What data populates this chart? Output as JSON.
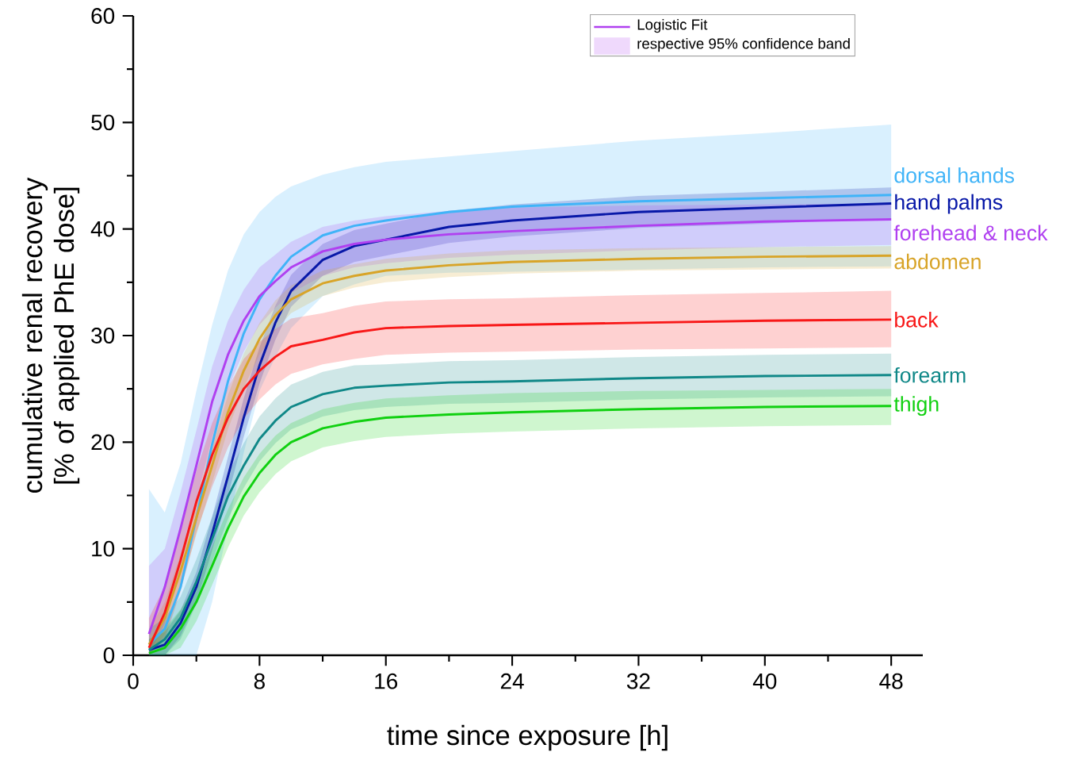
{
  "chart_data": {
    "type": "line",
    "xlabel": "time since exposure [h]",
    "ylabel": "cumulative renal recovery [% of applied PhE dose]",
    "xlim": [
      0,
      50
    ],
    "xticks": [
      0,
      8,
      16,
      24,
      32,
      40,
      48
    ],
    "ylim": [
      0,
      60
    ],
    "yticks": [
      0,
      10,
      20,
      30,
      40,
      50,
      60
    ],
    "annotations": [
      "Logistic Fit",
      "respective 95% confidence band"
    ],
    "x": [
      1,
      2,
      3,
      4,
      5,
      6,
      7,
      8,
      9,
      10,
      12,
      14,
      16,
      20,
      24,
      32,
      40,
      48
    ],
    "series": [
      {
        "name": "dorsal hands",
        "color": "#40b4f8",
        "values": [
          1.0,
          2.5,
          6.4,
          12.9,
          19.8,
          25.7,
          30.2,
          33.4,
          35.6,
          37.4,
          39.4,
          40.3,
          40.8,
          41.6,
          42.1,
          42.6,
          42.9,
          43.2
        ],
        "lower": [
          0,
          0,
          0,
          0,
          5,
          12,
          19,
          24.8,
          28,
          30.7,
          33.7,
          34.8,
          35.6,
          35.9,
          36,
          36.2,
          36.4,
          36.5
        ],
        "upper": [
          15.6,
          13.4,
          18,
          24.8,
          31,
          36.1,
          39.5,
          41.6,
          43,
          44,
          45.1,
          45.8,
          46.3,
          46.8,
          47.3,
          48.3,
          49,
          49.8
        ]
      },
      {
        "name": "hand palms",
        "color": "#0818a8",
        "values": [
          0.5,
          1.0,
          3.0,
          6.4,
          11.4,
          16.8,
          22.3,
          27.2,
          31.2,
          34.2,
          37.1,
          38.4,
          39,
          40.2,
          40.8,
          41.6,
          42.0,
          42.4
        ],
        "lower": [
          0,
          0,
          1.8,
          5,
          9.8,
          15,
          20.5,
          25.5,
          29.6,
          32.7,
          35.6,
          36.9,
          37.5,
          38.7,
          39.3,
          40.1,
          40.5,
          41.0
        ],
        "upper": [
          1.5,
          2.2,
          4.2,
          7.8,
          13,
          18.6,
          24.1,
          28.9,
          32.8,
          35.7,
          38.6,
          39.9,
          40.5,
          41.7,
          42.3,
          43.1,
          43.5,
          43.9
        ]
      },
      {
        "name": "forehead & neck",
        "color": "#b040f0",
        "values": [
          2.0,
          6.4,
          11.9,
          17.8,
          23.8,
          28.2,
          31.4,
          33.7,
          35.1,
          36.4,
          37.9,
          38.6,
          39,
          39.5,
          39.8,
          40.3,
          40.7,
          40.9
        ],
        "lower": [
          0,
          3,
          8.5,
          14.5,
          20.5,
          25,
          28.5,
          31,
          32.6,
          34,
          35.6,
          36.4,
          36.8,
          37.3,
          37.6,
          38,
          38.3,
          38.5
        ],
        "upper": [
          8.4,
          10,
          15.3,
          21.1,
          27.1,
          31.4,
          34.3,
          36.4,
          37.6,
          38.8,
          40.2,
          40.8,
          41.2,
          41.7,
          42,
          42.2,
          42.3,
          42.4
        ]
      },
      {
        "name": "abdomen",
        "color": "#d8a428",
        "values": [
          1.0,
          3.5,
          7.9,
          12.9,
          17.8,
          22.8,
          26.7,
          29.7,
          31.9,
          33.4,
          34.9,
          35.6,
          36.1,
          36.6,
          36.9,
          37.2,
          37.4,
          37.5
        ],
        "lower": [
          0,
          2,
          6.3,
          11.3,
          16.2,
          21.2,
          25.1,
          28.2,
          30.5,
          32.1,
          33.7,
          34.5,
          35,
          35.5,
          35.8,
          36.1,
          36.2,
          36.3
        ],
        "upper": [
          2.4,
          5,
          9.5,
          14.5,
          19.4,
          24.4,
          28.3,
          31.2,
          33.3,
          34.7,
          36.1,
          36.7,
          37.2,
          37.7,
          38,
          38.2,
          38.3,
          38.4
        ]
      },
      {
        "name": "back",
        "color": "#f81818",
        "values": [
          0.7,
          4.0,
          8.9,
          14.4,
          18.8,
          22.3,
          25.0,
          26.7,
          28.0,
          29.0,
          29.6,
          30.3,
          30.7,
          30.9,
          31.0,
          31.2,
          31.4,
          31.5
        ],
        "lower": [
          0,
          1.5,
          6,
          11.5,
          15.8,
          19.5,
          22.2,
          24,
          25.4,
          26.4,
          27.3,
          27.8,
          28.2,
          28.4,
          28.5,
          28.7,
          28.8,
          28.9
        ],
        "upper": [
          3.5,
          6.5,
          11.8,
          17.3,
          21.8,
          25.1,
          27.8,
          29.4,
          30.6,
          31.6,
          32.1,
          32.8,
          33.2,
          33.4,
          33.5,
          33.8,
          34,
          34.2
        ]
      },
      {
        "name": "forearm",
        "color": "#108888",
        "values": [
          0.5,
          1.5,
          3.5,
          6.9,
          10.9,
          14.9,
          17.8,
          20.3,
          22.0,
          23.3,
          24.5,
          25.1,
          25.3,
          25.6,
          25.7,
          26.0,
          26.2,
          26.3
        ],
        "lower": [
          0,
          0,
          1.5,
          4.8,
          8.8,
          12.8,
          15.7,
          18.2,
          19.9,
          21.2,
          22.4,
          23,
          23.3,
          23.6,
          23.7,
          24,
          24.2,
          24.3
        ],
        "upper": [
          2.5,
          3.5,
          5.5,
          9,
          13,
          17,
          19.9,
          22.4,
          24.1,
          25.4,
          26.6,
          27.2,
          27.3,
          27.6,
          27.7,
          28,
          28.2,
          28.3
        ]
      },
      {
        "name": "thigh",
        "color": "#10d010",
        "values": [
          0.2,
          0.7,
          2.5,
          5.0,
          8.4,
          11.9,
          14.9,
          17.1,
          18.8,
          20.0,
          21.3,
          21.9,
          22.3,
          22.6,
          22.8,
          23.1,
          23.3,
          23.4
        ],
        "lower": [
          0,
          0,
          0.7,
          3.2,
          6.6,
          10.1,
          13.1,
          15.3,
          17,
          18.2,
          19.5,
          20.1,
          20.5,
          20.8,
          21,
          21.3,
          21.5,
          21.6
        ],
        "upper": [
          1.5,
          2.5,
          4.3,
          6.8,
          10.2,
          13.7,
          16.7,
          18.9,
          20.6,
          21.8,
          23.1,
          23.7,
          24.1,
          24.4,
          24.6,
          24.8,
          24.9,
          25.0
        ]
      }
    ]
  }
}
